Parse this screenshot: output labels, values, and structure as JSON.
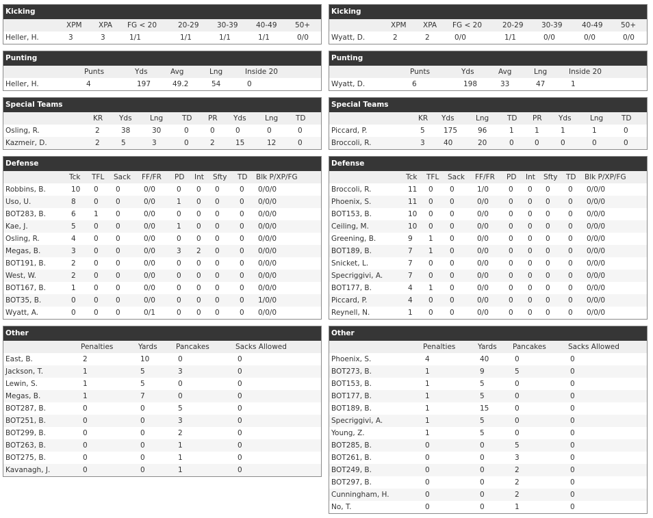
{
  "left": [
    {
      "title": "Kicking",
      "columns": [
        "XPM",
        "XPA",
        "FG < 20",
        "20-29",
        "30-39",
        "40-49",
        "50+"
      ],
      "rows": [
        [
          "Heller, H.",
          "3",
          "3",
          "1/1",
          "1/1",
          "1/1",
          "1/1",
          "0/0"
        ]
      ]
    },
    {
      "title": "Punting",
      "columns": [
        "Punts",
        "Yds",
        "Avg",
        "Lng",
        "Inside 20"
      ],
      "rows": [
        [
          "Heller, H.",
          "4",
          "197",
          "49.2",
          "54",
          "0"
        ]
      ]
    },
    {
      "title": "Special Teams",
      "columns": [
        "KR",
        "Yds",
        "Lng",
        "TD",
        "PR",
        "Yds",
        "Lng",
        "TD"
      ],
      "rows": [
        [
          "Osling, R.",
          "2",
          "38",
          "30",
          "0",
          "0",
          "0",
          "0",
          "0"
        ],
        [
          "Kazmeir, D.",
          "2",
          "5",
          "3",
          "0",
          "2",
          "15",
          "12",
          "0"
        ]
      ]
    },
    {
      "title": "Defense",
      "columns": [
        "Tck",
        "TFL",
        "Sack",
        "FF/FR",
        "PD",
        "Int",
        "Sfty",
        "TD",
        "Blk P/XP/FG"
      ],
      "rows": [
        [
          "Robbins, B.",
          "10",
          "0",
          "0",
          "0/0",
          "0",
          "0",
          "0",
          "0",
          "0/0/0"
        ],
        [
          "Uso, U.",
          "8",
          "0",
          "0",
          "0/0",
          "1",
          "0",
          "0",
          "0",
          "0/0/0"
        ],
        [
          "BOT283, B.",
          "6",
          "1",
          "0",
          "0/0",
          "0",
          "0",
          "0",
          "0",
          "0/0/0"
        ],
        [
          "Kae, J.",
          "5",
          "0",
          "0",
          "0/0",
          "1",
          "0",
          "0",
          "0",
          "0/0/0"
        ],
        [
          "Osling, R.",
          "4",
          "0",
          "0",
          "0/0",
          "0",
          "0",
          "0",
          "0",
          "0/0/0"
        ],
        [
          "Megas, B.",
          "3",
          "0",
          "0",
          "0/0",
          "3",
          "2",
          "0",
          "0",
          "0/0/0"
        ],
        [
          "BOT191, B.",
          "2",
          "0",
          "0",
          "0/0",
          "0",
          "0",
          "0",
          "0",
          "0/0/0"
        ],
        [
          "West, W.",
          "2",
          "0",
          "0",
          "0/0",
          "0",
          "0",
          "0",
          "0",
          "0/0/0"
        ],
        [
          "BOT167, B.",
          "1",
          "0",
          "0",
          "0/0",
          "0",
          "0",
          "0",
          "0",
          "0/0/0"
        ],
        [
          "BOT35, B.",
          "0",
          "0",
          "0",
          "0/0",
          "0",
          "0",
          "0",
          "0",
          "1/0/0"
        ],
        [
          "Wyatt, A.",
          "0",
          "0",
          "0",
          "0/1",
          "0",
          "0",
          "0",
          "0",
          "0/0/0"
        ]
      ]
    },
    {
      "title": "Other",
      "columns": [
        "Penalties",
        "Yards",
        "Pancakes",
        "Sacks Allowed"
      ],
      "rows": [
        [
          "East, B.",
          "2",
          "10",
          "0",
          "0"
        ],
        [
          "Jackson, T.",
          "1",
          "5",
          "3",
          "0"
        ],
        [
          "Lewin, S.",
          "1",
          "5",
          "0",
          "0"
        ],
        [
          "Megas, B.",
          "1",
          "7",
          "0",
          "0"
        ],
        [
          "BOT287, B.",
          "0",
          "0",
          "5",
          "0"
        ],
        [
          "BOT251, B.",
          "0",
          "0",
          "3",
          "0"
        ],
        [
          "BOT299, B.",
          "0",
          "0",
          "2",
          "0"
        ],
        [
          "BOT263, B.",
          "0",
          "0",
          "1",
          "0"
        ],
        [
          "BOT275, B.",
          "0",
          "0",
          "1",
          "0"
        ],
        [
          "Kavanagh, J.",
          "0",
          "0",
          "1",
          "0"
        ]
      ]
    }
  ],
  "right": [
    {
      "title": "Kicking",
      "columns": [
        "XPM",
        "XPA",
        "FG < 20",
        "20-29",
        "30-39",
        "40-49",
        "50+"
      ],
      "rows": [
        [
          "Wyatt, D.",
          "2",
          "2",
          "0/0",
          "1/1",
          "0/0",
          "0/0",
          "0/0"
        ]
      ]
    },
    {
      "title": "Punting",
      "columns": [
        "Punts",
        "Yds",
        "Avg",
        "Lng",
        "Inside 20"
      ],
      "rows": [
        [
          "Wyatt, D.",
          "6",
          "198",
          "33",
          "47",
          "1"
        ]
      ]
    },
    {
      "title": "Special Teams",
      "columns": [
        "KR",
        "Yds",
        "Lng",
        "TD",
        "PR",
        "Yds",
        "Lng",
        "TD"
      ],
      "rows": [
        [
          "Piccard, P.",
          "5",
          "175",
          "96",
          "1",
          "1",
          "1",
          "1",
          "0"
        ],
        [
          "Broccoli, R.",
          "3",
          "40",
          "20",
          "0",
          "0",
          "0",
          "0",
          "0"
        ]
      ]
    },
    {
      "title": "Defense",
      "columns": [
        "Tck",
        "TFL",
        "Sack",
        "FF/FR",
        "PD",
        "Int",
        "Sfty",
        "TD",
        "Blk P/XP/FG"
      ],
      "rows": [
        [
          "Broccoli, R.",
          "11",
          "0",
          "0",
          "1/0",
          "0",
          "0",
          "0",
          "0",
          "0/0/0"
        ],
        [
          "Phoenix, S.",
          "11",
          "0",
          "0",
          "0/0",
          "0",
          "0",
          "0",
          "0",
          "0/0/0"
        ],
        [
          "BOT153, B.",
          "10",
          "0",
          "0",
          "0/0",
          "0",
          "0",
          "0",
          "0",
          "0/0/0"
        ],
        [
          "Ceiling, M.",
          "10",
          "0",
          "0",
          "0/0",
          "0",
          "0",
          "0",
          "0",
          "0/0/0"
        ],
        [
          "Greening, B.",
          "9",
          "1",
          "0",
          "0/0",
          "0",
          "0",
          "0",
          "0",
          "0/0/0"
        ],
        [
          "BOT189, B.",
          "7",
          "1",
          "0",
          "0/0",
          "0",
          "0",
          "0",
          "0",
          "0/0/0"
        ],
        [
          "Snicket, L.",
          "7",
          "0",
          "0",
          "0/0",
          "0",
          "0",
          "0",
          "0",
          "0/0/0"
        ],
        [
          "Specriggivi, A.",
          "7",
          "0",
          "0",
          "0/0",
          "0",
          "0",
          "0",
          "0",
          "0/0/0"
        ],
        [
          "BOT177, B.",
          "4",
          "1",
          "0",
          "0/0",
          "0",
          "0",
          "0",
          "0",
          "0/0/0"
        ],
        [
          "Piccard, P.",
          "4",
          "0",
          "0",
          "0/0",
          "0",
          "0",
          "0",
          "0",
          "0/0/0"
        ],
        [
          "Reynell, N.",
          "1",
          "0",
          "0",
          "0/0",
          "0",
          "0",
          "0",
          "0",
          "0/0/0"
        ]
      ]
    },
    {
      "title": "Other",
      "columns": [
        "Penalties",
        "Yards",
        "Pancakes",
        "Sacks Allowed"
      ],
      "rows": [
        [
          "Phoenix, S.",
          "4",
          "40",
          "0",
          "0"
        ],
        [
          "BOT273, B.",
          "1",
          "9",
          "5",
          "0"
        ],
        [
          "BOT153, B.",
          "1",
          "5",
          "0",
          "0"
        ],
        [
          "BOT177, B.",
          "1",
          "5",
          "0",
          "0"
        ],
        [
          "BOT189, B.",
          "1",
          "15",
          "0",
          "0"
        ],
        [
          "Specriggivi, A.",
          "1",
          "5",
          "0",
          "0"
        ],
        [
          "Young, Z.",
          "1",
          "5",
          "0",
          "0"
        ],
        [
          "BOT285, B.",
          "0",
          "0",
          "5",
          "0"
        ],
        [
          "BOT261, B.",
          "0",
          "0",
          "3",
          "0"
        ],
        [
          "BOT249, B.",
          "0",
          "0",
          "2",
          "0"
        ],
        [
          "BOT297, B.",
          "0",
          "0",
          "2",
          "0"
        ],
        [
          "Cunningham, H.",
          "0",
          "0",
          "2",
          "0"
        ],
        [
          "No, T.",
          "0",
          "0",
          "1",
          "0"
        ]
      ]
    }
  ]
}
